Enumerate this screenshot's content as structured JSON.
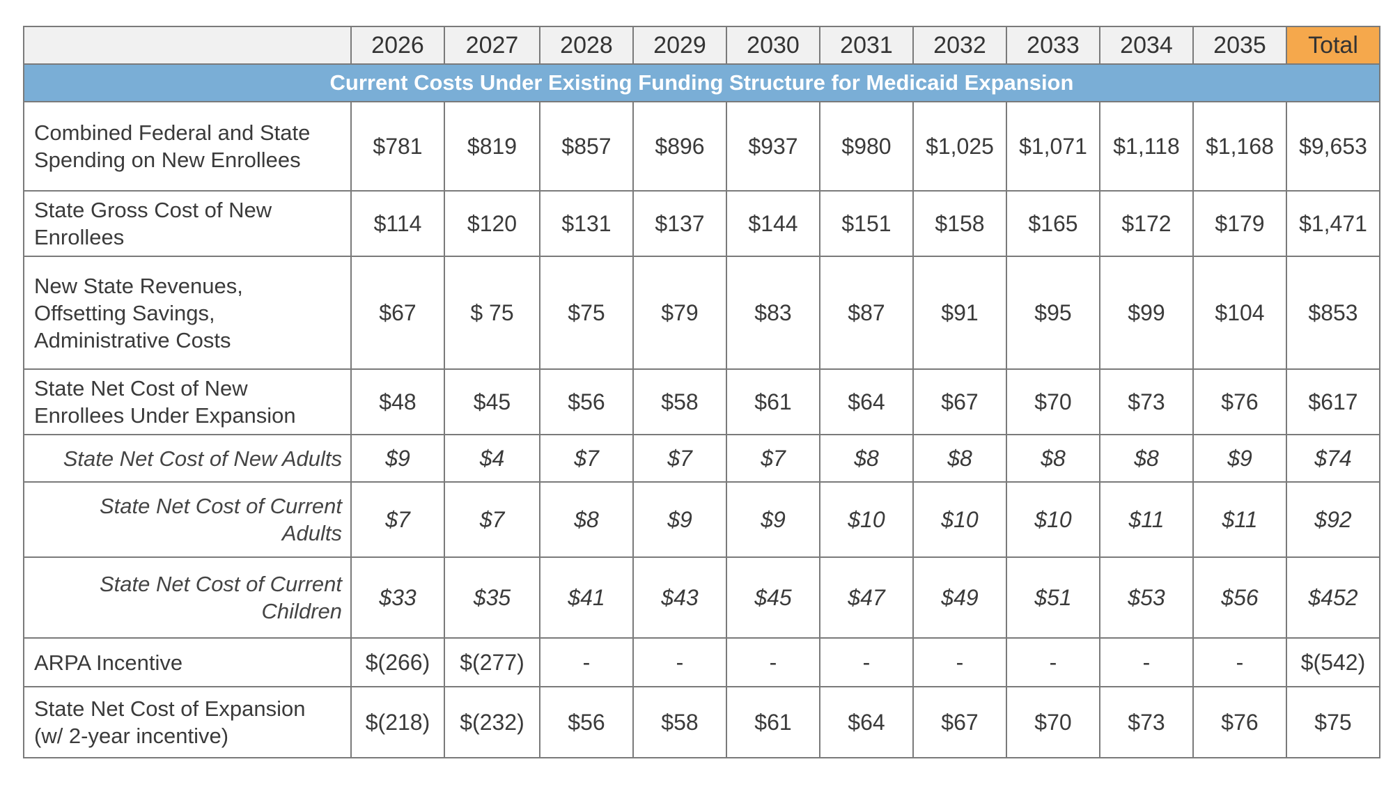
{
  "columns": [
    "2026",
    "2027",
    "2028",
    "2029",
    "2030",
    "2031",
    "2032",
    "2033",
    "2034",
    "2035",
    "Total"
  ],
  "section_title": "Current Costs Under Existing Funding Structure for Medicaid Expansion",
  "rows": [
    {
      "label": [
        "Combined Federal and State",
        "Spending on New Enrollees"
      ],
      "sub": false,
      "values": [
        "$781",
        "$819",
        "$857",
        "$896",
        "$937",
        "$980",
        "$1,025",
        "$1,071",
        "$1,118",
        "$1,168",
        "$9,653"
      ]
    },
    {
      "label": [
        "State Gross Cost of New",
        "Enrollees"
      ],
      "sub": false,
      "values": [
        "$114",
        "$120",
        "$131",
        "$137",
        "$144",
        "$151",
        "$158",
        "$165",
        "$172",
        "$179",
        "$1,471"
      ]
    },
    {
      "label": [
        "New State Revenues,",
        "Offsetting Savings,",
        "Administrative Costs"
      ],
      "sub": false,
      "values": [
        "$67",
        "$ 75",
        "$75",
        "$79",
        "$83",
        "$87",
        "$91",
        "$95",
        "$99",
        "$104",
        "$853"
      ]
    },
    {
      "label": [
        "State Net Cost of New",
        "Enrollees Under Expansion"
      ],
      "sub": false,
      "values": [
        "$48",
        "$45",
        "$56",
        "$58",
        "$61",
        "$64",
        "$67",
        "$70",
        "$73",
        "$76",
        "$617"
      ]
    },
    {
      "label": [
        "State Net Cost of New Adults"
      ],
      "sub": true,
      "values": [
        "$9",
        "$4",
        "$7",
        "$7",
        "$7",
        "$8",
        "$8",
        "$8",
        "$8",
        "$9",
        "$74"
      ]
    },
    {
      "label": [
        "State Net Cost of Current",
        "Adults"
      ],
      "sub": true,
      "values": [
        "$7",
        "$7",
        "$8",
        "$9",
        "$9",
        "$10",
        "$10",
        "$10",
        "$11",
        "$11",
        "$92"
      ]
    },
    {
      "label": [
        "State Net Cost of Current",
        "Children"
      ],
      "sub": true,
      "values": [
        "$33",
        "$35",
        "$41",
        "$43",
        "$45",
        "$47",
        "$49",
        "$51",
        "$53",
        "$56",
        "$452"
      ]
    },
    {
      "label": [
        "ARPA Incentive"
      ],
      "sub": false,
      "values": [
        "$(266)",
        "$(277)",
        "-",
        "-",
        "-",
        "-",
        "-",
        "-",
        "-",
        "-",
        "$(542)"
      ]
    },
    {
      "label": [
        "State Net Cost of Expansion",
        "(w/ 2-year incentive)"
      ],
      "sub": false,
      "values": [
        "$(218)",
        "$(232)",
        "$56",
        "$58",
        "$61",
        "$64",
        "$67",
        "$70",
        "$73",
        "$76",
        "$75"
      ]
    }
  ]
}
